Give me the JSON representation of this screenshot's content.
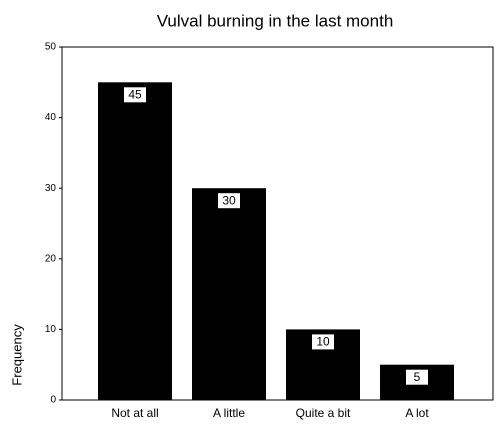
{
  "chart_data": {
    "type": "bar",
    "title": "Vulval burning in the last month",
    "y_label": "Frequency",
    "categories": [
      "Not at all",
      "A little",
      "Quite a bit",
      "A lot"
    ],
    "values": [
      45,
      30,
      10,
      5
    ],
    "color": "#000000",
    "ylim": [
      0,
      50
    ],
    "yticks": [
      0,
      10,
      20,
      30,
      40,
      50
    ]
  }
}
